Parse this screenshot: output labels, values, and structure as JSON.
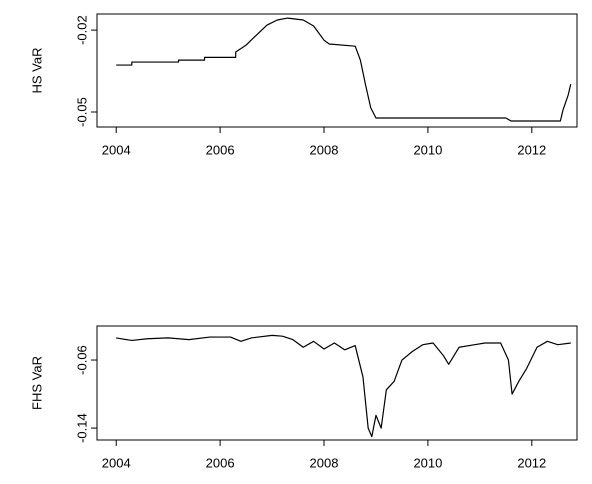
{
  "chart_data": [
    {
      "type": "line",
      "y_label": "HS VaR",
      "xlim": [
        2003.63,
        2012.87
      ],
      "xticks": [
        2004,
        2006,
        2008,
        2010,
        2012
      ],
      "ylim": [
        -0.0555,
        -0.0141
      ],
      "yticks": [
        -0.02,
        -0.05
      ],
      "series": [
        {
          "color": "#000000",
          "x": [
            2004.0,
            2004.3,
            2004.3,
            2005.2,
            2005.2,
            2005.7,
            2005.7,
            2006.3,
            2006.3,
            2006.5,
            2006.7,
            2006.9,
            2007.1,
            2007.3,
            2007.6,
            2007.8,
            2008.0,
            2008.1,
            2008.6,
            2008.7,
            2008.8,
            2008.9,
            2009.0,
            2011.5,
            2011.6,
            2012.55,
            2012.6,
            2012.7,
            2012.75
          ],
          "values": [
            -0.0328,
            -0.0328,
            -0.0317,
            -0.0317,
            -0.031,
            -0.031,
            -0.03,
            -0.03,
            -0.028,
            -0.0255,
            -0.0218,
            -0.0182,
            -0.0163,
            -0.0156,
            -0.0163,
            -0.0185,
            -0.0237,
            -0.0251,
            -0.0259,
            -0.031,
            -0.0401,
            -0.0485,
            -0.0522,
            -0.0522,
            -0.0533,
            -0.0533,
            -0.0493,
            -0.0438,
            -0.0398
          ]
        }
      ]
    },
    {
      "type": "line",
      "y_label": "FHS VaR",
      "xlim": [
        2003.63,
        2012.87
      ],
      "xticks": [
        2004,
        2006,
        2008,
        2010,
        2012
      ],
      "ylim": [
        -0.154,
        -0.02
      ],
      "yticks": [
        -0.06,
        -0.14
      ],
      "series": [
        {
          "color": "#000000",
          "x": [
            2004.0,
            2004.3,
            2004.6,
            2005.0,
            2005.4,
            2005.8,
            2006.2,
            2006.4,
            2006.6,
            2007.0,
            2007.2,
            2007.4,
            2007.6,
            2007.8,
            2008.0,
            2008.2,
            2008.4,
            2008.6,
            2008.75,
            2008.85,
            2008.92,
            2009.0,
            2009.1,
            2009.2,
            2009.35,
            2009.5,
            2009.7,
            2009.9,
            2010.1,
            2010.3,
            2010.4,
            2010.6,
            2010.9,
            2011.1,
            2011.4,
            2011.55,
            2011.62,
            2011.75,
            2011.9,
            2012.1,
            2012.3,
            2012.5,
            2012.75
          ],
          "values": [
            -0.034,
            -0.037,
            -0.035,
            -0.034,
            -0.036,
            -0.033,
            -0.033,
            -0.038,
            -0.034,
            -0.031,
            -0.032,
            -0.036,
            -0.045,
            -0.038,
            -0.047,
            -0.04,
            -0.048,
            -0.043,
            -0.08,
            -0.14,
            -0.15,
            -0.125,
            -0.14,
            -0.095,
            -0.085,
            -0.06,
            -0.05,
            -0.042,
            -0.04,
            -0.055,
            -0.065,
            -0.045,
            -0.042,
            -0.04,
            -0.04,
            -0.06,
            -0.1,
            -0.085,
            -0.07,
            -0.045,
            -0.038,
            -0.042,
            -0.04
          ]
        }
      ]
    }
  ]
}
